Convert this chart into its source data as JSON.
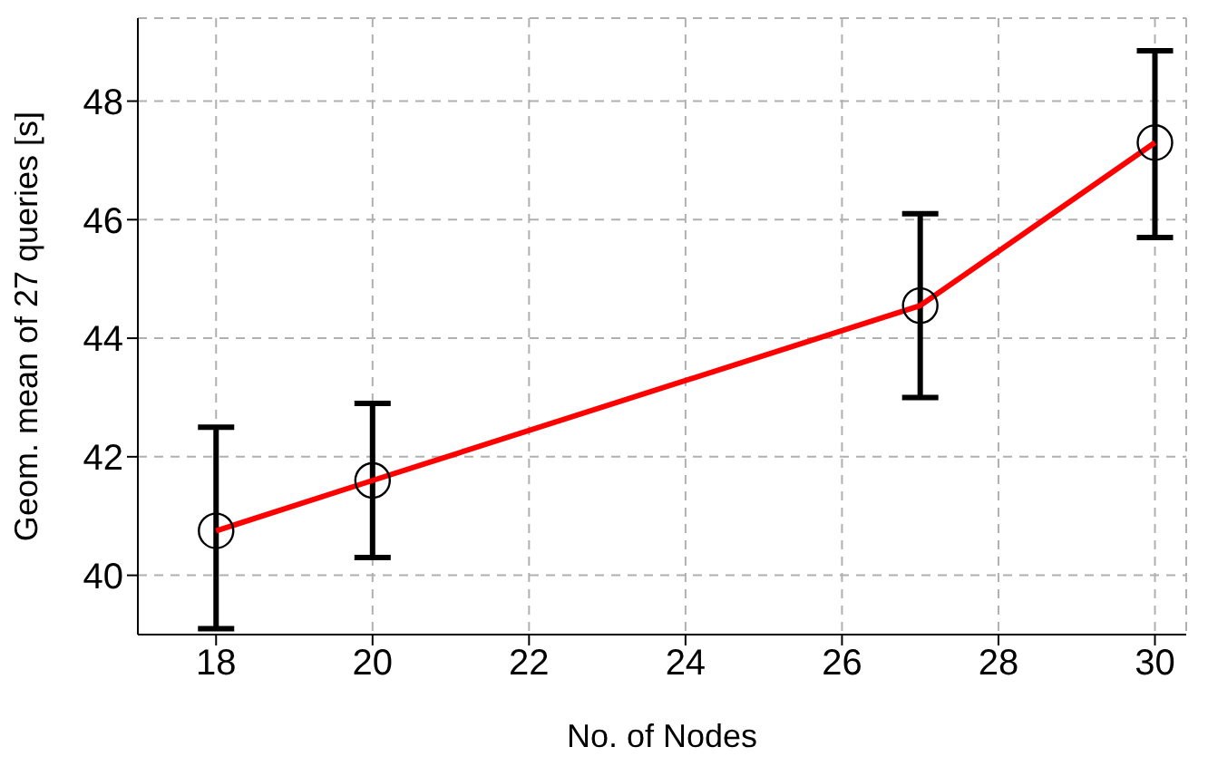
{
  "chart_data": {
    "type": "line",
    "xlabel": "No. of Nodes",
    "ylabel": "Geom. mean of 27 queries [s]",
    "x": [
      18,
      20,
      27,
      30
    ],
    "series": [
      {
        "color": "#ff0000",
        "values": [
          40.75,
          41.6,
          44.55,
          47.3
        ],
        "errors": [
          [
            39.1,
            42.5
          ],
          [
            40.3,
            42.9
          ],
          [
            43.0,
            46.1
          ],
          [
            45.7,
            48.85
          ]
        ]
      }
    ],
    "xlim": [
      17,
      30.4
    ],
    "xticks": [
      18,
      20,
      22,
      24,
      26,
      28,
      30
    ],
    "ylim": [
      39,
      49.4
    ],
    "yticks": [
      40,
      42,
      44,
      46,
      48
    ],
    "grid": true,
    "marker": "circle",
    "line_style": "solid"
  }
}
